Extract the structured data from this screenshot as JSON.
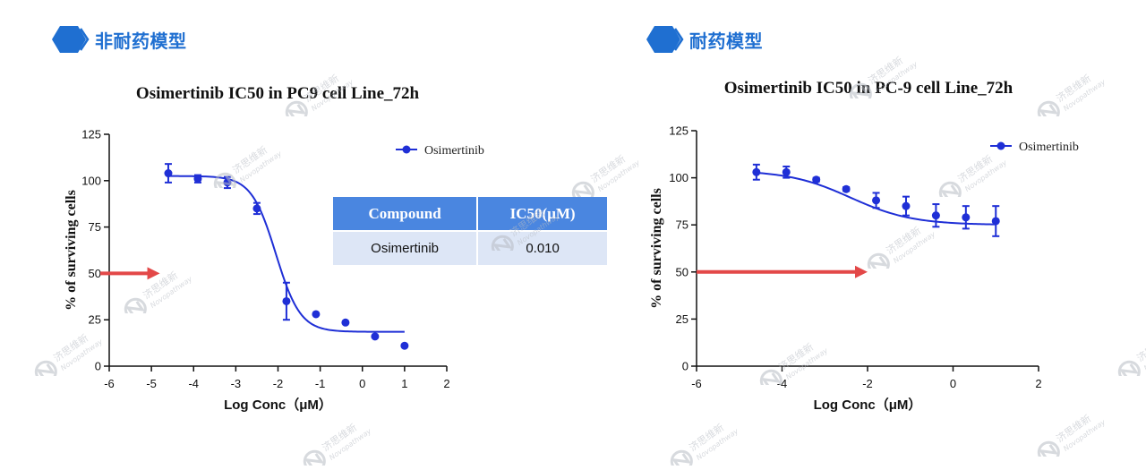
{
  "sections": [
    {
      "title": "非耐药模型"
    },
    {
      "title": "耐药模型"
    }
  ],
  "table": {
    "headers": [
      "Compound",
      "IC50(μM)"
    ],
    "rows": [
      [
        "Osimertinib",
        "0.010"
      ]
    ]
  },
  "watermark": {
    "cn": "济思维新",
    "en": "Novopathway"
  },
  "colors": {
    "series": "#1f2fd6",
    "arrow": "#e34848",
    "header": "#1f6fd1",
    "table_header": "#4a86e0",
    "table_row": "#dde6f6"
  },
  "chart_data": [
    {
      "type": "scatter",
      "title": "Osimertinib  IC50 in PC9 cell Line_72h",
      "xlabel": "Log Conc（μM）",
      "ylabel": "% of surviving cells",
      "xlim": [
        -6,
        2
      ],
      "ylim": [
        0,
        125
      ],
      "xticks": [
        -6,
        -5,
        -4,
        -3,
        -2,
        -1,
        0,
        1,
        2
      ],
      "yticks": [
        0,
        25,
        50,
        75,
        100,
        125
      ],
      "series": [
        {
          "name": "Osimertinib",
          "x": [
            -4.6,
            -3.9,
            -3.2,
            -2.5,
            -1.8,
            -1.1,
            -0.4,
            0.3,
            1.0
          ],
          "y": [
            104,
            101,
            99,
            85,
            35,
            28,
            23.5,
            16,
            11
          ],
          "err": [
            5,
            2,
            3,
            3,
            10,
            0,
            0,
            0,
            0
          ]
        }
      ],
      "fit": {
        "curve": "sigmoidal",
        "top": 102.5,
        "bottom": 18.5,
        "logIC50": -2.05,
        "hill": 1.5
      },
      "reference_arrow": {
        "y": 50,
        "x_end": -4.8
      },
      "legend": "top-right"
    },
    {
      "type": "line",
      "title": "Osimertinib  IC50 in PC-9 cell Line_72h",
      "xlabel": "Log Conc（μM）",
      "ylabel": "% of surviving cells",
      "xlim": [
        -6,
        2
      ],
      "ylim": [
        0,
        125
      ],
      "xticks": [
        -6,
        -4,
        -2,
        0,
        2
      ],
      "yticks": [
        0,
        25,
        50,
        75,
        100,
        125
      ],
      "series": [
        {
          "name": "Osimertinib",
          "x": [
            -4.6,
            -3.9,
            -3.2,
            -2.5,
            -1.8,
            -1.1,
            -0.4,
            0.3,
            1.0
          ],
          "y": [
            103,
            103,
            99,
            94,
            88,
            85,
            80,
            79,
            77
          ],
          "err": [
            4,
            3,
            1,
            1,
            4,
            5,
            6,
            6,
            8
          ]
        }
      ],
      "fit": {
        "curve": "sigmoidal",
        "top": 104,
        "bottom": 75,
        "logIC50": -2.4,
        "hill": 0.6
      },
      "reference_arrow": {
        "y": 50,
        "x_end": -2.0
      },
      "legend": "top-right"
    }
  ]
}
